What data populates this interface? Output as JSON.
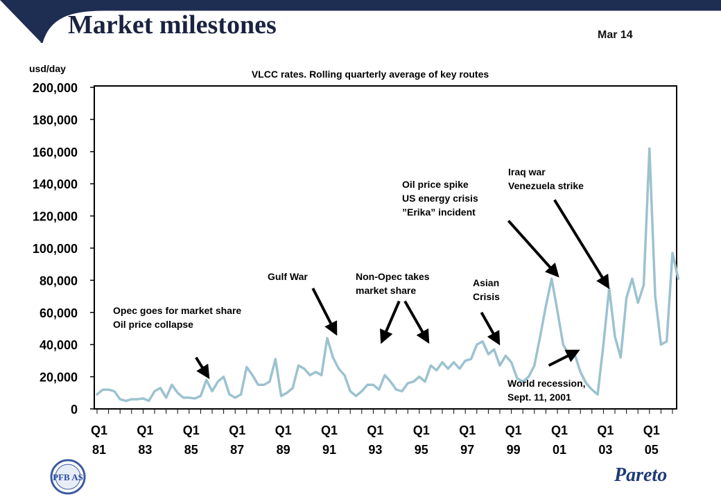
{
  "header": {
    "title": "Market milestones",
    "date": "Mar 14"
  },
  "logos": {
    "left": "PFB AS",
    "right": "Pareto"
  },
  "colors": {
    "line": "#9cc2cf",
    "header": "#1e2d52",
    "title": "#1a2340",
    "brand": "#1f3a78"
  },
  "chart_data": {
    "type": "line",
    "title": "VLCC rates. Rolling quarterly average of key routes",
    "ylabel": "usd/day",
    "ylim": [
      0,
      200000
    ],
    "xlim": [
      0,
      100
    ],
    "yticks": [
      {
        "value": 0,
        "label": "0"
      },
      {
        "value": 20000,
        "label": "20,000"
      },
      {
        "value": 40000,
        "label": "40,000"
      },
      {
        "value": 60000,
        "label": "60,000"
      },
      {
        "value": 80000,
        "label": "80,000"
      },
      {
        "value": 100000,
        "label": "100,000"
      },
      {
        "value": 120000,
        "label": "120,000"
      },
      {
        "value": 140000,
        "label": "140,000"
      },
      {
        "value": 160000,
        "label": "160,000"
      },
      {
        "value": 180000,
        "label": "180,000"
      },
      {
        "value": 200000,
        "label": "200,000"
      }
    ],
    "xticks": [
      {
        "index": 0,
        "quarter": "Q1",
        "year": "81"
      },
      {
        "index": 8,
        "quarter": "Q1",
        "year": "83"
      },
      {
        "index": 16,
        "quarter": "Q1",
        "year": "85"
      },
      {
        "index": 24,
        "quarter": "Q1",
        "year": "87"
      },
      {
        "index": 32,
        "quarter": "Q1",
        "year": "89"
      },
      {
        "index": 40,
        "quarter": "Q1",
        "year": "91"
      },
      {
        "index": 48,
        "quarter": "Q1",
        "year": "93"
      },
      {
        "index": 56,
        "quarter": "Q1",
        "year": "95"
      },
      {
        "index": 64,
        "quarter": "Q1",
        "year": "97"
      },
      {
        "index": 72,
        "quarter": "Q1",
        "year": "99"
      },
      {
        "index": 80,
        "quarter": "Q1",
        "year": "01"
      },
      {
        "index": 88,
        "quarter": "Q1",
        "year": "03"
      },
      {
        "index": 96,
        "quarter": "Q1",
        "year": "05"
      }
    ],
    "series": [
      {
        "name": "VLCC rates",
        "values": [
          9000,
          12000,
          12000,
          11000,
          6000,
          5000,
          6000,
          6000,
          6500,
          5000,
          11000,
          13000,
          7000,
          15000,
          10000,
          7000,
          7000,
          6500,
          8000,
          18000,
          11000,
          17000,
          20000,
          9000,
          7000,
          9000,
          26000,
          21000,
          15000,
          15000,
          17000,
          31000,
          8000,
          10000,
          13000,
          27000,
          25000,
          21000,
          23000,
          21000,
          44000,
          32000,
          25000,
          21000,
          11000,
          8000,
          11000,
          15000,
          15000,
          12000,
          21000,
          17000,
          12000,
          11000,
          16000,
          17000,
          20000,
          17000,
          27000,
          24000,
          29000,
          25000,
          29000,
          25000,
          30000,
          31000,
          40000,
          42000,
          34000,
          37000,
          27000,
          33000,
          29000,
          19000,
          17000,
          20000,
          27000,
          45000,
          64000,
          81000,
          61000,
          40000,
          34000,
          34000,
          23000,
          16000,
          12000,
          9000,
          40000,
          75000,
          45000,
          32000,
          69000,
          81000,
          66000,
          77000,
          162000,
          70000,
          40000,
          42000,
          97000,
          81000
        ]
      }
    ],
    "annotations": [
      {
        "lines": [
          "Opec goes for market share",
          "Oil price collapse"
        ],
        "arrows": [
          {
            "from": [
              17.2,
              32000
            ],
            "to": [
              19.3,
              20000
            ]
          }
        ]
      },
      {
        "lines": [
          "Gulf War"
        ],
        "arrows": [
          {
            "from": [
              37.5,
              75000
            ],
            "to": [
              41.5,
              47000
            ]
          }
        ]
      },
      {
        "lines": [
          "Non-Opec takes",
          "market share"
        ],
        "arrows": [
          {
            "from": [
              52.5,
              67000
            ],
            "to": [
              49.5,
              42000
            ]
          },
          {
            "from": [
              53.5,
              67000
            ],
            "to": [
              57.5,
              42000
            ]
          }
        ]
      },
      {
        "lines": [
          "Asian",
          "Crisis"
        ],
        "arrows": [
          {
            "from": [
              66.8,
              60000
            ],
            "to": [
              69.8,
              41000
            ]
          }
        ]
      },
      {
        "lines": [
          "Oil price spike",
          "US energy crisis",
          "”Erika” incident"
        ],
        "arrows": [
          {
            "from": [
              71.5,
              117000
            ],
            "to": [
              80,
              83000
            ]
          }
        ]
      },
      {
        "lines": [
          "Iraq war",
          "Venezuela strike"
        ],
        "arrows": [
          {
            "from": [
              79.5,
              130000
            ],
            "to": [
              88.8,
              76000
            ]
          }
        ]
      },
      {
        "lines": [
          "World recession,",
          "Sept. 11, 2001"
        ],
        "arrows": [
          {
            "from": [
              78.5,
              27000
            ],
            "to": [
              83.5,
              36000
            ]
          }
        ]
      }
    ]
  }
}
